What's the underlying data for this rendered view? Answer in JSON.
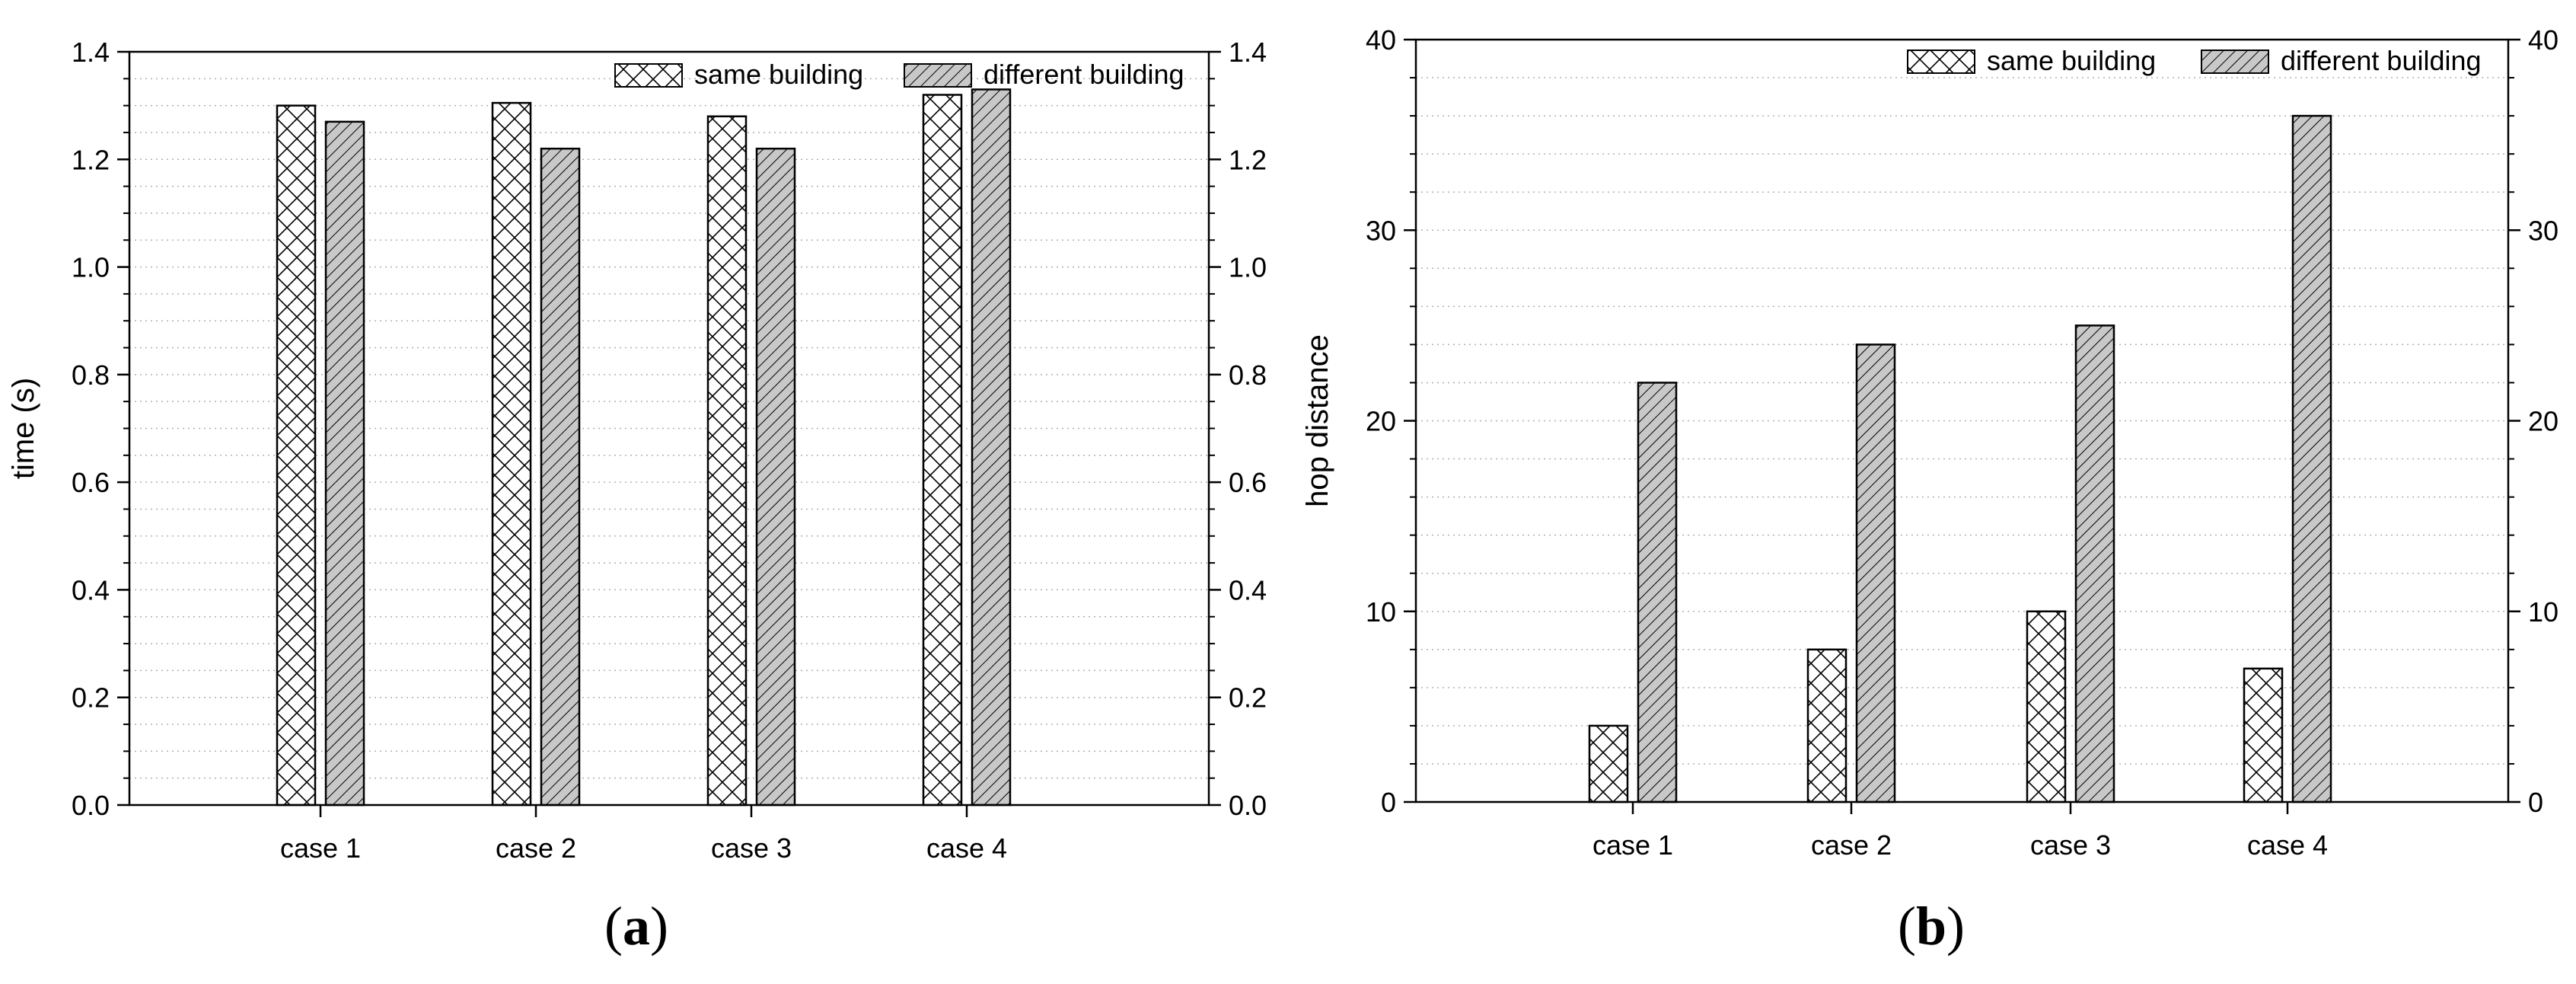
{
  "chart_data": [
    {
      "type": "bar",
      "panel_label": "a",
      "categories": [
        "case 1",
        "case 2",
        "case 3",
        "case 4"
      ],
      "series": [
        {
          "name": "same building",
          "pattern": "crosshatch",
          "values": [
            1.3,
            1.305,
            1.28,
            1.32
          ]
        },
        {
          "name": "different building",
          "pattern": "diagonal",
          "values": [
            1.27,
            1.22,
            1.22,
            1.33
          ]
        }
      ],
      "title": "",
      "xlabel": "",
      "ylabel": "time (s)",
      "ylim": [
        0,
        1.4
      ],
      "yticks": [
        "0.0",
        "0.2",
        "0.4",
        "0.6",
        "0.8",
        "1.0",
        "1.2",
        "1.4"
      ],
      "ytick_values": [
        0,
        0.2,
        0.4,
        0.6,
        0.8,
        1.0,
        1.2,
        1.4
      ],
      "minor_step": 0.05,
      "right_axis": true,
      "grid": "dotted horizontal",
      "legend_position": "top-right"
    },
    {
      "type": "bar",
      "panel_label": "b",
      "categories": [
        "case 1",
        "case 2",
        "case 3",
        "case 4"
      ],
      "series": [
        {
          "name": "same building",
          "pattern": "crosshatch",
          "values": [
            4,
            8,
            10,
            7
          ]
        },
        {
          "name": "different building",
          "pattern": "diagonal",
          "values": [
            22,
            24,
            25,
            36
          ]
        }
      ],
      "title": "",
      "xlabel": "",
      "ylabel": "hop distance",
      "ylim": [
        0,
        40
      ],
      "yticks": [
        "0",
        "10",
        "20",
        "30",
        "40"
      ],
      "ytick_values": [
        0,
        10,
        20,
        30,
        40
      ],
      "minor_step": 2,
      "right_axis": true,
      "grid": "dotted horizontal",
      "legend_position": "top-right"
    }
  ],
  "colors": {
    "axis": "#000000",
    "grid": "#b0b0b0",
    "same_fill": "#ffffff",
    "different_fill": "#c8c8c8",
    "hatch": "#000000"
  }
}
